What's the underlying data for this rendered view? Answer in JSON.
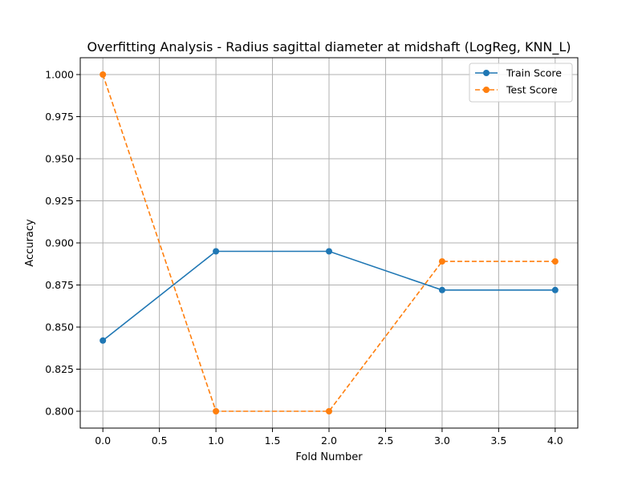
{
  "chart_data": {
    "type": "line",
    "title": "Overfitting Analysis - Radius sagittal diameter at midshaft (LogReg, KNN_L)",
    "xlabel": "Fold Number",
    "ylabel": "Accuracy",
    "x": [
      0,
      1,
      2,
      3,
      4
    ],
    "xlim": [
      -0.2,
      4.2
    ],
    "ylim": [
      0.79,
      1.01
    ],
    "xticks": [
      0.0,
      0.5,
      1.0,
      1.5,
      2.0,
      2.5,
      3.0,
      3.5,
      4.0
    ],
    "xtick_labels": [
      "0.0",
      "0.5",
      "1.0",
      "1.5",
      "2.0",
      "2.5",
      "3.0",
      "3.5",
      "4.0"
    ],
    "yticks": [
      0.8,
      0.825,
      0.85,
      0.875,
      0.9,
      0.925,
      0.95,
      0.975,
      1.0
    ],
    "ytick_labels": [
      "0.800",
      "0.825",
      "0.850",
      "0.875",
      "0.900",
      "0.925",
      "0.950",
      "0.975",
      "1.000"
    ],
    "grid": true,
    "legend_position": "top-right",
    "series": [
      {
        "name": "Train Score",
        "values": [
          0.842,
          0.895,
          0.895,
          0.872,
          0.872
        ],
        "color": "#1f77b4",
        "style": "solid",
        "marker": "circle"
      },
      {
        "name": "Test Score",
        "values": [
          1.0,
          0.8,
          0.8,
          0.889,
          0.889
        ],
        "color": "#ff7f0e",
        "style": "dashed",
        "marker": "circle"
      }
    ]
  }
}
